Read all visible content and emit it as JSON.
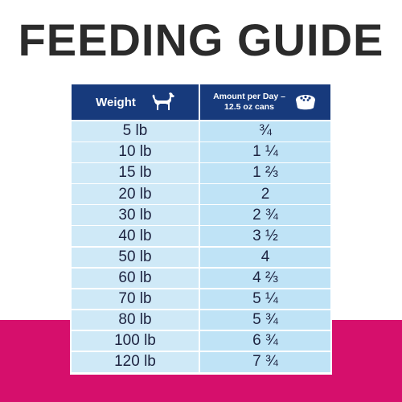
{
  "title": "FEEDING GUIDE",
  "colors": {
    "header_bg": "#173a7c",
    "weight_cell_bg": "#cfe9f7",
    "amount_cell_bg": "#bfe3f6",
    "band": "#d60f6c",
    "title_text": "#2b2b2b"
  },
  "table": {
    "headers": {
      "weight": "Weight",
      "amount_line1": "Amount per Day –",
      "amount_line2": "12.5 oz cans"
    },
    "header_icons": [
      "dog-icon",
      "food-bowl-icon"
    ],
    "rows": [
      {
        "weight": "5 lb",
        "amount": "¾"
      },
      {
        "weight": "10 lb",
        "amount": "1 ¼"
      },
      {
        "weight": "15 lb",
        "amount": "1 ⅔"
      },
      {
        "weight": "20 lb",
        "amount": "2"
      },
      {
        "weight": "30 lb",
        "amount": "2 ¾"
      },
      {
        "weight": "40 lb",
        "amount": "3 ½"
      },
      {
        "weight": "50 lb",
        "amount": "4"
      },
      {
        "weight": "60 lb",
        "amount": "4 ⅔"
      },
      {
        "weight": "70 lb",
        "amount": "5 ¼"
      },
      {
        "weight": "80 lb",
        "amount": "5 ¾"
      },
      {
        "weight": "100 lb",
        "amount": "6 ¾"
      },
      {
        "weight": "120 lb",
        "amount": "7 ¾"
      }
    ]
  }
}
